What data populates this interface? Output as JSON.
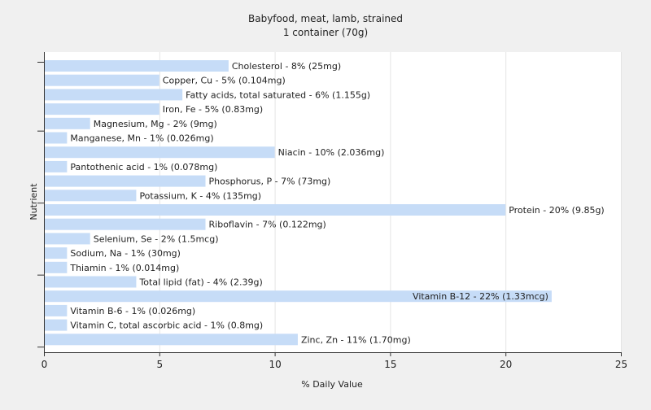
{
  "chart_data": {
    "type": "bar",
    "orientation": "horizontal",
    "title": "Babyfood, meat, lamb, strained",
    "subtitle": "1 container (70g)",
    "xlabel": "% Daily Value",
    "ylabel": "Nutrient",
    "xlim": [
      0,
      25
    ],
    "xticks": [
      0,
      5,
      10,
      15,
      20,
      25
    ],
    "grid": true,
    "bar_color": "#c6dcf7",
    "categories": [
      "Cholesterol",
      "Copper, Cu",
      "Fatty acids, total saturated",
      "Iron, Fe",
      "Magnesium, Mg",
      "Manganese, Mn",
      "Niacin",
      "Pantothenic acid",
      "Phosphorus, P",
      "Potassium, K",
      "Protein",
      "Riboflavin",
      "Selenium, Se",
      "Sodium, Na",
      "Thiamin",
      "Total lipid (fat)",
      "Vitamin B-12",
      "Vitamin B-6",
      "Vitamin C, total ascorbic acid",
      "Zinc, Zn"
    ],
    "values": [
      8,
      5,
      6,
      5,
      2,
      1,
      10,
      1,
      7,
      4,
      20,
      7,
      2,
      1,
      1,
      4,
      22,
      1,
      1,
      11
    ],
    "data_labels": [
      "Cholesterol - 8% (25mg)",
      "Copper, Cu - 5% (0.104mg)",
      "Fatty acids, total saturated - 6% (1.155g)",
      "Iron, Fe - 5% (0.83mg)",
      "Magnesium, Mg - 2% (9mg)",
      "Manganese, Mn - 1% (0.026mg)",
      "Niacin - 10% (2.036mg)",
      "Pantothenic acid - 1% (0.078mg)",
      "Phosphorus, P - 7% (73mg)",
      "Potassium, K - 4% (135mg)",
      "Protein - 20% (9.85g)",
      "Riboflavin - 7% (0.122mg)",
      "Selenium, Se - 2% (1.5mcg)",
      "Sodium, Na - 1% (30mg)",
      "Thiamin - 1% (0.014mg)",
      "Total lipid (fat) - 4% (2.39g)",
      "Vitamin B-12 - 22% (1.33mcg)",
      "Vitamin B-6 - 1% (0.026mg)",
      "Vitamin C, total ascorbic acid - 1% (0.8mg)",
      "Zinc, Zn - 11% (1.70mg)"
    ]
  }
}
